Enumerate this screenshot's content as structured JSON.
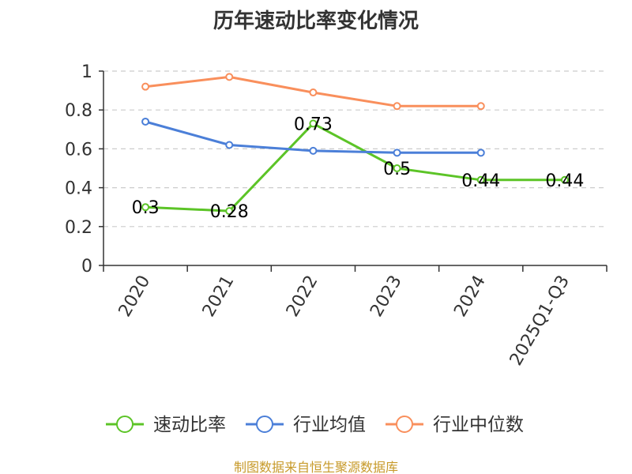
{
  "chart_data": {
    "type": "line",
    "title": "历年速动比率变化情况",
    "categories": [
      "2020",
      "2021",
      "2022",
      "2023",
      "2024",
      "2025Q1-Q3"
    ],
    "ylim": [
      0,
      1
    ],
    "yticks": [
      "0",
      "0.2",
      "0.4",
      "0.6",
      "0.8",
      "1"
    ],
    "grid": true,
    "legend_position": "bottom",
    "series": [
      {
        "name": "速动比率",
        "color": "#5cc427",
        "values": [
          0.3,
          0.28,
          0.73,
          0.5,
          0.44,
          0.44
        ],
        "labels": [
          "0.3",
          "0.28",
          "0.73",
          "0.5",
          "0.44",
          "0.44"
        ]
      },
      {
        "name": "行业均值",
        "color": "#4b7fd8",
        "values": [
          0.74,
          0.62,
          0.59,
          0.58,
          0.58,
          null
        ]
      },
      {
        "name": "行业中位数",
        "color": "#f98f5c",
        "values": [
          0.92,
          0.97,
          0.89,
          0.82,
          0.82,
          null
        ]
      }
    ]
  },
  "source": "制图数据来自恒生聚源数据库"
}
